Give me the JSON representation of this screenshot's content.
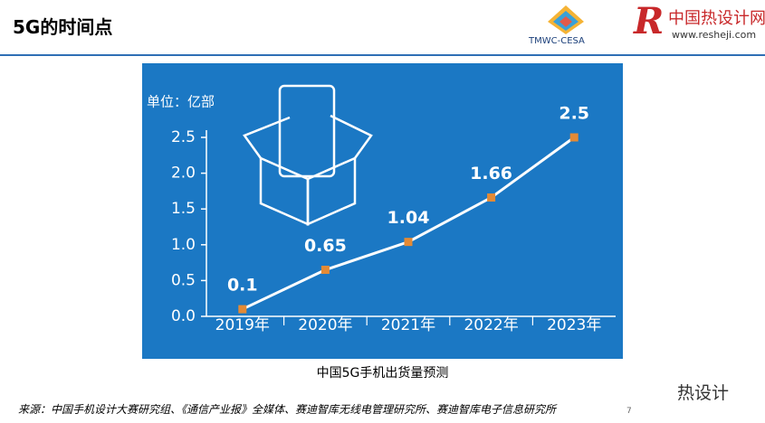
{
  "header": {
    "title": "5G的时间点",
    "logo_left": "TMWC-CESA",
    "logo_right": "中国热设计网",
    "logo_url": "www.resheji.com"
  },
  "chart_data": {
    "type": "line",
    "y_unit": "单位：亿部",
    "categories": [
      "2019年",
      "2020年",
      "2021年",
      "2022年",
      "2023年"
    ],
    "values": [
      0.1,
      0.65,
      1.04,
      1.66,
      2.5
    ],
    "line_color": "#ffffff",
    "marker_color": "#e38a35",
    "ylim": [
      0,
      2.5
    ],
    "yticks": [
      {
        "value": 0,
        "label": "0.0"
      },
      0.5,
      {
        "value": 1,
        "label": "1.0"
      },
      1.5,
      {
        "value": 2,
        "label": "2.0"
      },
      2.5
    ]
  },
  "caption": "中国5G手机出货量预测",
  "source": "来源：中国手机设计大赛研究组、《通信产业报》全媒体、赛迪智库无线电管理研究所、赛迪智库电子信息研究所",
  "page_number": "7",
  "watermark": "热设计"
}
